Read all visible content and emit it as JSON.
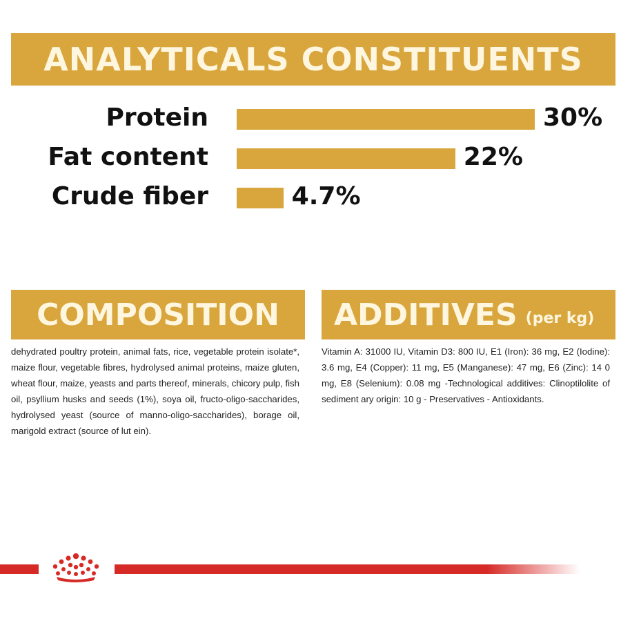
{
  "analytical": {
    "title": "ANALYTICALS CONSTITUENTS",
    "rows": [
      {
        "label": "Protein",
        "value_text": "30%",
        "value": 30
      },
      {
        "label": "Fat content",
        "value_text": "22%",
        "value": 22
      },
      {
        "label": "Crude fiber",
        "value_text": "4.7%",
        "value": 4.7
      }
    ]
  },
  "composition": {
    "title": "COMPOSITION",
    "text": "dehydrated poultry protein, animal fats, rice, vegetable protein isolate*, maize flour, vegetable fibres, hydrolysed animal proteins, maize gluten, wheat flour, maize, yeasts and parts thereof, minerals, chicory pulp, fish oil, psyllium husks and seeds (1%), soya oil, fructo-oligo-saccharides, hydrolysed yeast (source of manno-oligo-saccharides), borage oil, marigold extract (source of lut ein)."
  },
  "additives": {
    "title": "ADDITIVES",
    "subtitle": "(per kg)",
    "text": "Vitamin A: 31000 IU, Vitamin D3: 800 IU, E1 (Iron): 36 mg, E2 (Iodine): 3.6 mg, E4 (Copper): 11 mg, E5 (Manganese): 47 mg, E6 (Zinc): 14 0 mg, E8 (Selenium): 0.08 mg -Technological additives: Clinoptilolite of sediment ary origin: 10 g - Preservatives - Antioxidants."
  },
  "colors": {
    "gold": "#d8a63c",
    "red": "#d62a27"
  },
  "icons": {
    "footer": "crown-icon"
  }
}
